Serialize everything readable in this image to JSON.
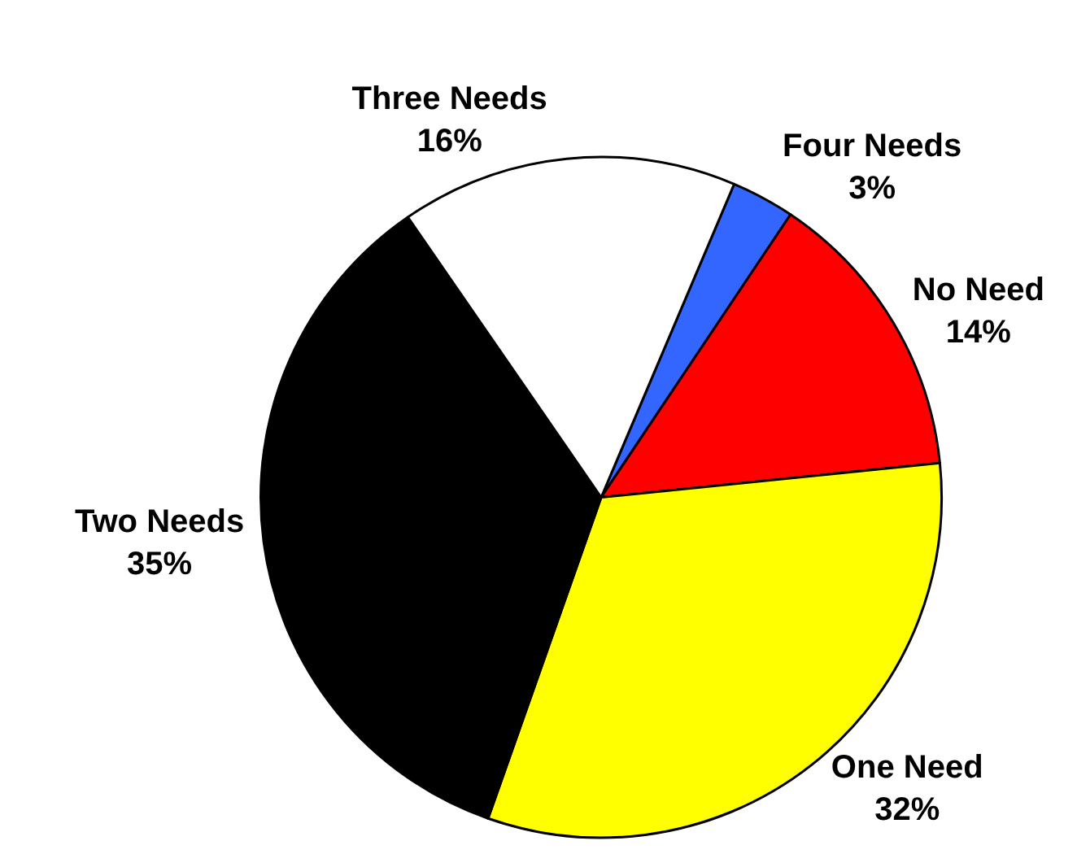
{
  "chart_data": {
    "type": "pie",
    "categories": [
      "Four Needs",
      "No Need",
      "One Need",
      "Two Needs",
      "Three Needs"
    ],
    "values": [
      3,
      14,
      32,
      35,
      16
    ],
    "value_labels": [
      "3%",
      "14%",
      "32%",
      "35%",
      "16%"
    ],
    "colors": [
      "#3366ff",
      "#ff0000",
      "#ffff00",
      "#000000",
      "#ffffff"
    ],
    "legend": false
  }
}
